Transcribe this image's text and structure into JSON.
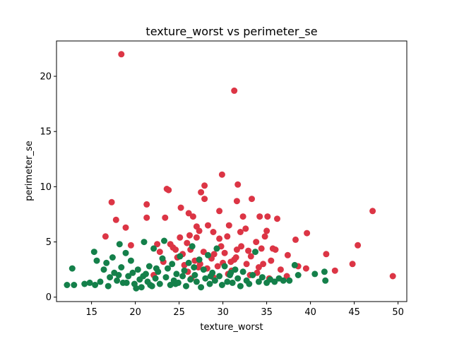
{
  "chart_data": {
    "type": "scatter",
    "title": "texture_worst vs perimeter_se",
    "xlabel": "texture_worst",
    "ylabel": "perimeter_se",
    "xlim": [
      11.0,
      51.0
    ],
    "ylim": [
      -0.4,
      23.2
    ],
    "xticks": [
      15,
      20,
      25,
      30,
      35,
      40,
      45,
      50
    ],
    "yticks": [
      0,
      5,
      10,
      15,
      20
    ],
    "grid": false,
    "legend": "none",
    "series": [
      {
        "color": "#dc3545",
        "points": [
          [
            18.4,
            22.0
          ],
          [
            31.3,
            18.7
          ],
          [
            29.9,
            11.1
          ],
          [
            31.7,
            10.2
          ],
          [
            27.9,
            10.1
          ],
          [
            23.6,
            9.8
          ],
          [
            23.8,
            9.7
          ],
          [
            27.5,
            9.5
          ],
          [
            33.3,
            8.9
          ],
          [
            27.9,
            8.9
          ],
          [
            17.3,
            8.6
          ],
          [
            21.3,
            8.4
          ],
          [
            25.2,
            8.1
          ],
          [
            31.6,
            8.7
          ],
          [
            29.6,
            7.8
          ],
          [
            26.1,
            7.6
          ],
          [
            26.6,
            7.3
          ],
          [
            34.2,
            7.3
          ],
          [
            35.1,
            7.3
          ],
          [
            32.3,
            7.3
          ],
          [
            23.4,
            7.2
          ],
          [
            36.2,
            7.1
          ],
          [
            47.1,
            7.8
          ],
          [
            17.8,
            7.0
          ],
          [
            21.3,
            7.2
          ],
          [
            28.3,
            6.5
          ],
          [
            27.0,
            6.4
          ],
          [
            30.7,
            6.5
          ],
          [
            35.0,
            6.0
          ],
          [
            18.9,
            6.3
          ],
          [
            32.6,
            6.2
          ],
          [
            27.3,
            6.0
          ],
          [
            28.9,
            5.9
          ],
          [
            26.2,
            5.6
          ],
          [
            32.0,
            5.9
          ],
          [
            39.6,
            5.8
          ],
          [
            30.5,
            5.5
          ],
          [
            34.8,
            5.5
          ],
          [
            16.6,
            5.5
          ],
          [
            25.1,
            5.4
          ],
          [
            27.0,
            5.4
          ],
          [
            29.6,
            5.3
          ],
          [
            38.3,
            5.2
          ],
          [
            33.8,
            5.0
          ],
          [
            24.0,
            4.8
          ],
          [
            22.5,
            4.8
          ],
          [
            19.5,
            4.7
          ],
          [
            35.7,
            4.4
          ],
          [
            32.1,
            4.6
          ],
          [
            26.3,
            4.3
          ],
          [
            45.4,
            4.7
          ],
          [
            27.8,
            4.1
          ],
          [
            31.6,
            4.3
          ],
          [
            34.4,
            4.4
          ],
          [
            30.2,
            4.0
          ],
          [
            22.8,
            4.1
          ],
          [
            24.6,
            4.3
          ],
          [
            29.0,
            3.9
          ],
          [
            36.0,
            4.3
          ],
          [
            41.8,
            3.9
          ],
          [
            25.4,
            3.9
          ],
          [
            33.2,
            3.7
          ],
          [
            28.7,
            3.5
          ],
          [
            37.4,
            3.8
          ],
          [
            24.8,
            3.6
          ],
          [
            31.3,
            3.4
          ],
          [
            26.8,
            3.3
          ],
          [
            23.2,
            3.2
          ],
          [
            30.0,
            3.1
          ],
          [
            35.5,
            3.3
          ],
          [
            44.8,
            3.0
          ],
          [
            27.4,
            3.0
          ],
          [
            32.7,
            3.0
          ],
          [
            25.6,
            2.9
          ],
          [
            29.4,
            2.8
          ],
          [
            38.6,
            2.8
          ],
          [
            34.1,
            2.7
          ],
          [
            28.2,
            2.6
          ],
          [
            42.8,
            2.4
          ],
          [
            36.6,
            2.5
          ],
          [
            31.0,
            2.4
          ],
          [
            26.0,
            2.3
          ],
          [
            33.9,
            2.2
          ],
          [
            30.6,
            2.1
          ],
          [
            39.5,
            2.6
          ],
          [
            49.4,
            1.9
          ],
          [
            35.3,
            1.7
          ],
          [
            28.9,
            1.8
          ],
          [
            22.1,
            2.0
          ],
          [
            26.4,
            1.7
          ],
          [
            33.1,
            2.0
          ],
          [
            37.3,
            1.9
          ],
          [
            31.5,
            3.6
          ],
          [
            24.3,
            4.5
          ],
          [
            29.8,
            4.6
          ],
          [
            27.2,
            2.7
          ],
          [
            32.9,
            4.2
          ],
          [
            25.9,
            4.9
          ],
          [
            34.6,
            3.0
          ],
          [
            30.9,
            3.2
          ]
        ]
      },
      {
        "color": "#14804a",
        "points": [
          [
            12.2,
            1.1
          ],
          [
            12.8,
            2.6
          ],
          [
            13.0,
            1.1
          ],
          [
            14.2,
            1.2
          ],
          [
            14.8,
            1.3
          ],
          [
            15.3,
            4.1
          ],
          [
            15.6,
            3.3
          ],
          [
            15.4,
            1.1
          ],
          [
            16.0,
            1.4
          ],
          [
            16.4,
            2.5
          ],
          [
            16.7,
            3.1
          ],
          [
            16.9,
            1.0
          ],
          [
            17.1,
            1.8
          ],
          [
            17.4,
            3.6
          ],
          [
            17.6,
            2.2
          ],
          [
            17.9,
            1.5
          ],
          [
            18.2,
            4.8
          ],
          [
            18.4,
            2.7
          ],
          [
            18.6,
            1.3
          ],
          [
            18.9,
            4.0
          ],
          [
            19.2,
            1.9
          ],
          [
            19.5,
            3.3
          ],
          [
            19.7,
            2.2
          ],
          [
            19.9,
            1.2
          ],
          [
            20.1,
            0.8
          ],
          [
            20.3,
            2.5
          ],
          [
            20.5,
            1.6
          ],
          [
            20.7,
            0.9
          ],
          [
            21.0,
            5.0
          ],
          [
            21.2,
            2.1
          ],
          [
            21.4,
            1.4
          ],
          [
            21.6,
            2.8
          ],
          [
            21.9,
            1.0
          ],
          [
            22.1,
            4.4
          ],
          [
            22.3,
            1.7
          ],
          [
            22.6,
            2.3
          ],
          [
            22.8,
            1.2
          ],
          [
            23.1,
            3.5
          ],
          [
            23.3,
            5.1
          ],
          [
            23.5,
            1.8
          ],
          [
            23.7,
            2.6
          ],
          [
            24.0,
            1.1
          ],
          [
            24.2,
            3.0
          ],
          [
            24.4,
            1.5
          ],
          [
            24.7,
            2.1
          ],
          [
            24.9,
            1.3
          ],
          [
            25.1,
            3.7
          ],
          [
            25.4,
            1.9
          ],
          [
            25.6,
            2.4
          ],
          [
            25.8,
            1.0
          ],
          [
            26.1,
            3.1
          ],
          [
            26.3,
            1.6
          ],
          [
            26.5,
            4.6
          ],
          [
            26.8,
            2.0
          ],
          [
            27.0,
            1.4
          ],
          [
            27.3,
            3.4
          ],
          [
            27.5,
            0.9
          ],
          [
            27.8,
            2.5
          ],
          [
            28.0,
            1.7
          ],
          [
            28.3,
            3.8
          ],
          [
            28.5,
            1.2
          ],
          [
            28.8,
            2.2
          ],
          [
            29.1,
            1.5
          ],
          [
            29.3,
            4.4
          ],
          [
            29.6,
            1.9
          ],
          [
            29.9,
            1.1
          ],
          [
            30.2,
            2.8
          ],
          [
            30.5,
            1.4
          ],
          [
            30.8,
            2.0
          ],
          [
            31.1,
            1.3
          ],
          [
            31.4,
            2.5
          ],
          [
            31.7,
            1.7
          ],
          [
            32.0,
            1.0
          ],
          [
            32.3,
            2.3
          ],
          [
            32.7,
            1.5
          ],
          [
            33.0,
            1.2
          ],
          [
            33.4,
            2.0
          ],
          [
            33.7,
            4.1
          ],
          [
            34.1,
            1.4
          ],
          [
            34.5,
            1.8
          ],
          [
            35.0,
            1.3
          ],
          [
            35.4,
            1.6
          ],
          [
            35.9,
            1.4
          ],
          [
            36.4,
            1.7
          ],
          [
            36.9,
            1.5
          ],
          [
            37.6,
            1.5
          ],
          [
            38.2,
            2.9
          ],
          [
            38.6,
            2.0
          ],
          [
            40.5,
            2.1
          ],
          [
            41.6,
            2.3
          ],
          [
            41.7,
            1.5
          ],
          [
            19.0,
            1.3
          ],
          [
            20.9,
            1.9
          ],
          [
            22.4,
            2.6
          ],
          [
            24.6,
            1.2
          ],
          [
            26.7,
            2.7
          ],
          [
            28.6,
            1.9
          ],
          [
            30.9,
            2.2
          ],
          [
            18.1,
            2.0
          ],
          [
            21.7,
            1.1
          ]
        ]
      }
    ]
  }
}
